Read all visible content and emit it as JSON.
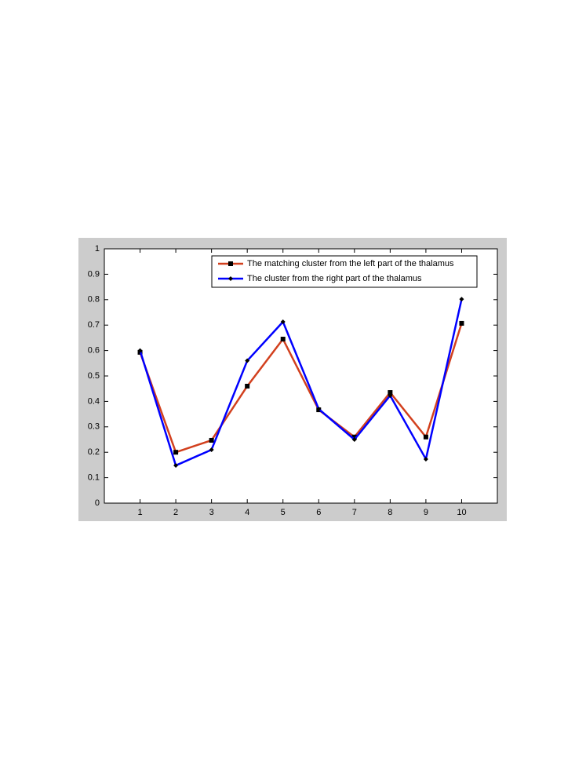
{
  "chart_data": {
    "type": "line",
    "x": [
      1,
      2,
      3,
      4,
      5,
      6,
      7,
      8,
      9,
      10
    ],
    "series": [
      {
        "name": "The matching cluster from the left part of the thalamus",
        "color": "#d2401e",
        "marker": "square",
        "values": [
          0.593,
          0.2,
          0.247,
          0.46,
          0.645,
          0.367,
          0.26,
          0.435,
          0.26,
          0.707
        ]
      },
      {
        "name": "The cluster from the right part of the thalamus",
        "color": "#0000ff",
        "marker": "diamond",
        "values": [
          0.6,
          0.148,
          0.21,
          0.56,
          0.713,
          0.37,
          0.25,
          0.423,
          0.173,
          0.802
        ]
      }
    ],
    "xlim": [
      0,
      11
    ],
    "xticks": [
      1,
      2,
      3,
      4,
      5,
      6,
      7,
      8,
      9,
      10
    ],
    "ylim": [
      0,
      1
    ],
    "yticks": [
      0,
      0.1,
      0.2,
      0.3,
      0.4,
      0.5,
      0.6,
      0.7,
      0.8,
      0.9,
      1
    ],
    "grid": false,
    "legend": "northeast"
  }
}
